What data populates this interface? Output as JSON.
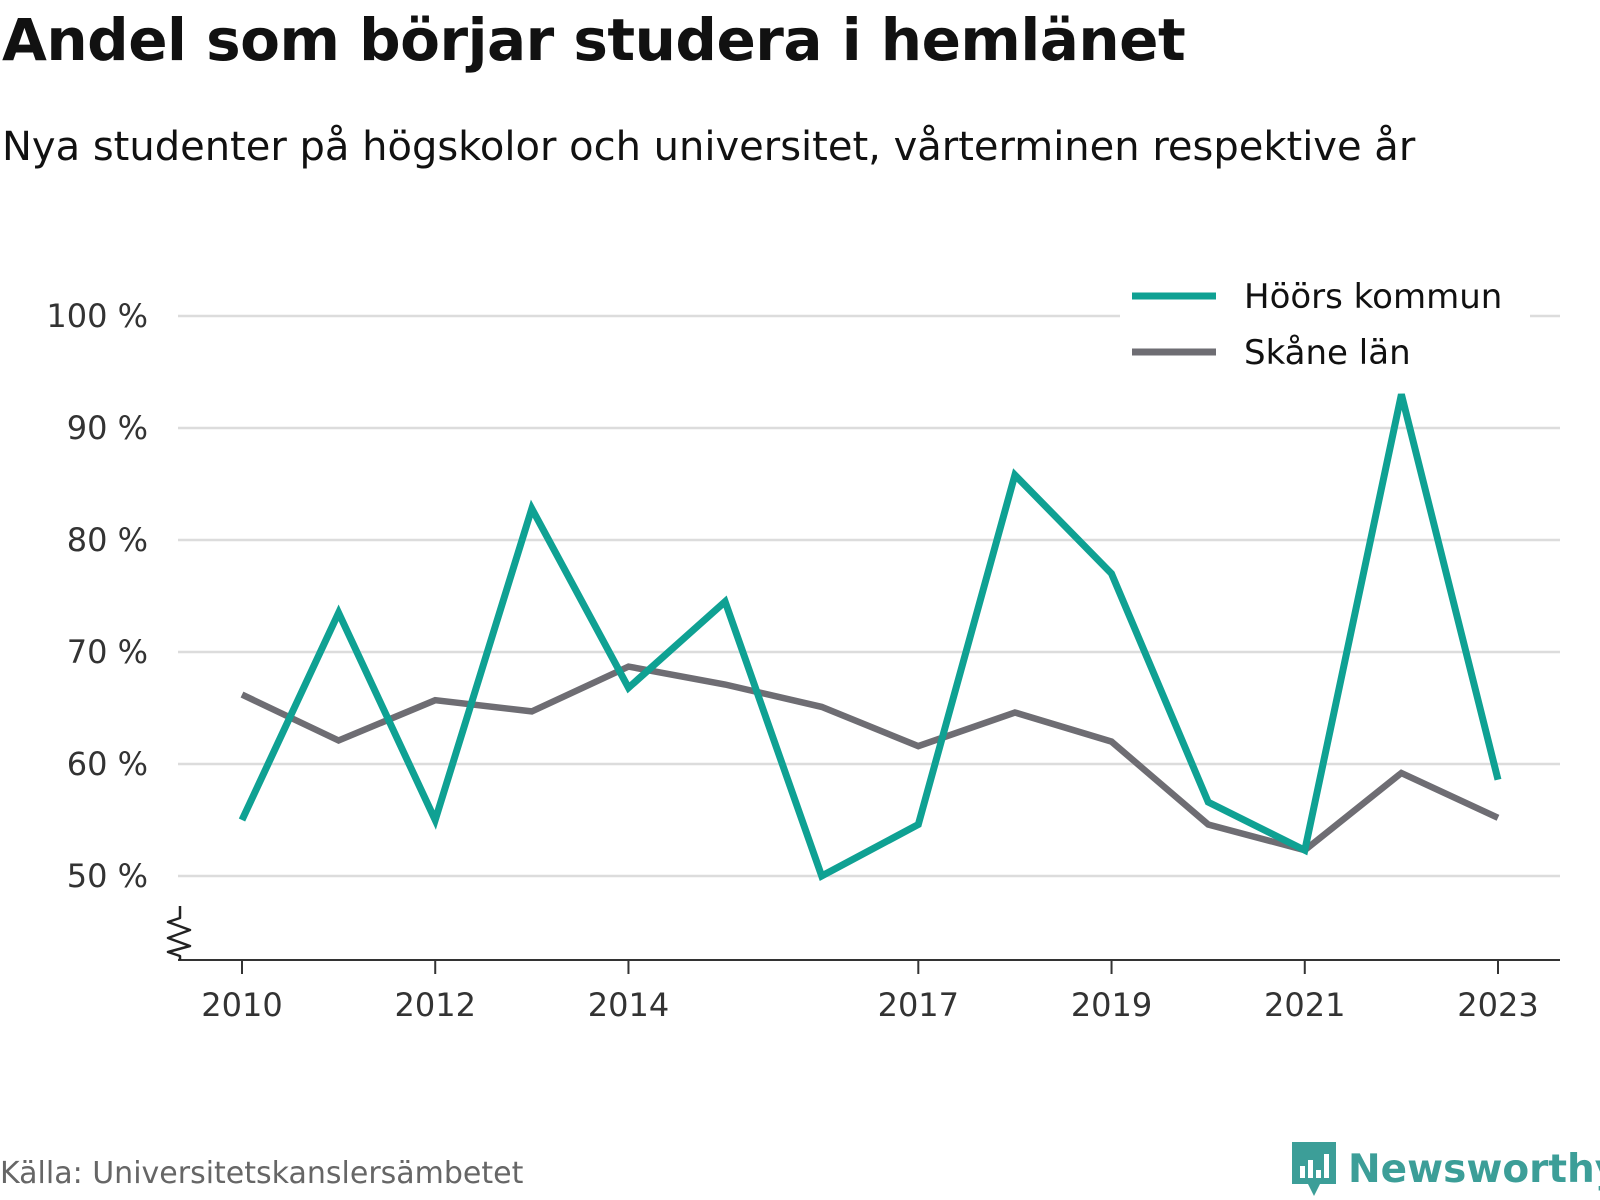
{
  "title": "Andel som börjar studera i hemlänet",
  "subtitle": "Nya studenter på högskolor och universitet, vårterminen respektive år",
  "source": "Källa: Universitetskanslersämbetet",
  "brand": {
    "name": "Newsworthy",
    "icon": "newsworthy-logo-icon",
    "color": "#3c9e98"
  },
  "chart_data": {
    "type": "line",
    "title": "Andel som börjar studera i hemlänet",
    "subtitle": "Nya studenter på högskolor och universitet, vårterminen respektive år",
    "x": [
      2010,
      2011,
      2012,
      2013,
      2014,
      2015,
      2016,
      2017,
      2018,
      2019,
      2020,
      2021,
      2022,
      2023
    ],
    "x_ticks": [
      "2010",
      "2012",
      "2014",
      "2017",
      "2019",
      "2021",
      "2023"
    ],
    "y_ticks": [
      "50 %",
      "60 %",
      "70 %",
      "80 %",
      "90 %",
      "100 %"
    ],
    "ylim": [
      50,
      100
    ],
    "axis_break": true,
    "grid": true,
    "legend_position": "top-right",
    "series": [
      {
        "name": "Höörs kommun",
        "color": "#0fa193",
        "values": [
          55.0,
          73.5,
          55.0,
          82.8,
          66.8,
          74.5,
          50.0,
          54.6,
          85.8,
          77.0,
          56.6,
          52.3,
          93.0,
          58.6
        ]
      },
      {
        "name": "Skåne län",
        "color": "#6e6d73",
        "values": [
          66.2,
          62.1,
          65.7,
          64.7,
          68.7,
          67.1,
          65.1,
          61.6,
          64.6,
          62.0,
          54.6,
          52.3,
          59.2,
          55.2
        ]
      }
    ]
  }
}
